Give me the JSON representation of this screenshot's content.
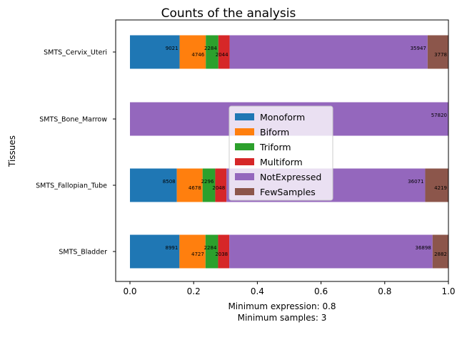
{
  "chart_data": {
    "type": "bar",
    "orientation": "horizontal",
    "stacked": true,
    "normalized": true,
    "title": "Counts of the analysis",
    "xlabel_lines": [
      "Minimum expression: 0.8",
      "Minimum samples: 3"
    ],
    "ylabel": "Tissues",
    "xlim": [
      0.0,
      1.0
    ],
    "xticks": [
      "0.0",
      "0.2",
      "0.4",
      "0.6",
      "0.8",
      "1.0"
    ],
    "grid": false,
    "legend_position": "center",
    "categories": [
      "SMTS_Cervix_Uteri",
      "SMTS_Bone_Marrow",
      "SMTS_Fallopian_Tube",
      "SMTS_Bladder"
    ],
    "series": [
      {
        "name": "Monoform",
        "color": "#1f77b4",
        "values": [
          9021,
          0,
          8508,
          8991
        ]
      },
      {
        "name": "Biform",
        "color": "#ff7f0e",
        "values": [
          4746,
          0,
          4678,
          4727
        ]
      },
      {
        "name": "Triform",
        "color": "#2ca02c",
        "values": [
          2284,
          0,
          2296,
          2284
        ]
      },
      {
        "name": "Multiform",
        "color": "#d62728",
        "values": [
          2044,
          0,
          2048,
          2038
        ]
      },
      {
        "name": "NotExpressed",
        "color": "#9467bd",
        "values": [
          35947,
          57820,
          36071,
          36898
        ]
      },
      {
        "name": "FewSamples",
        "color": "#8c564b",
        "values": [
          3778,
          0,
          4219,
          2882
        ]
      }
    ]
  }
}
